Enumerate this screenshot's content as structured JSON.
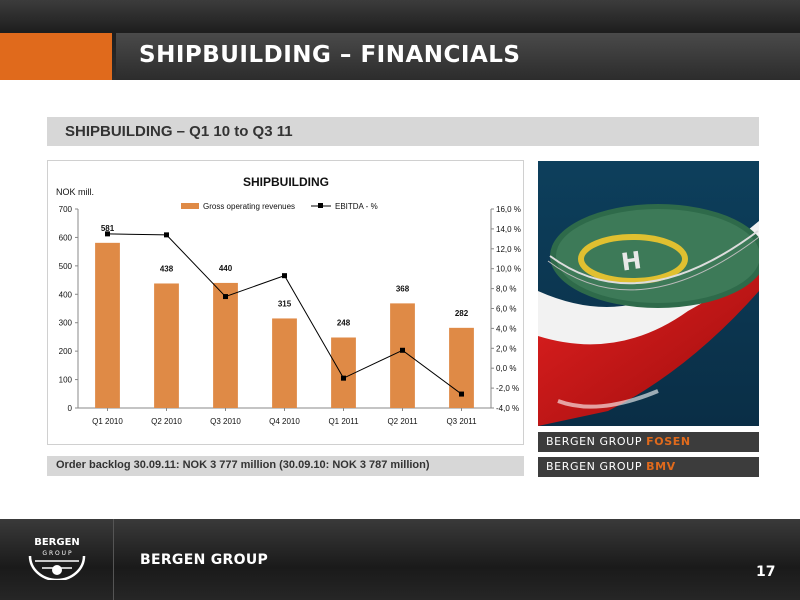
{
  "header": {
    "title": "SHIPBUILDING – FINANCIALS"
  },
  "section": {
    "subtitle": "SHIPBUILDING – Q1 10 to Q3 11"
  },
  "chart_data": {
    "type": "bar",
    "title": "SHIPBUILDING",
    "ylabel": "NOK mill.",
    "categories": [
      "Q1 2010",
      "Q2 2010",
      "Q3 2010",
      "Q4 2010",
      "Q1 2011",
      "Q2 2011",
      "Q3 2011"
    ],
    "ylim": [
      0,
      700
    ],
    "y_ticks": [
      "0",
      "100",
      "200",
      "300",
      "400",
      "500",
      "600",
      "700"
    ],
    "y2lim": [
      -4,
      16
    ],
    "y2_ticks": [
      "-4,0 %",
      "-2,0 %",
      "0,0 %",
      "2,0 %",
      "4,0 %",
      "6,0 %",
      "8,0 %",
      "10,0 %",
      "12,0 %",
      "14,0 %",
      "16,0 %"
    ],
    "legend_position": "top-center",
    "grid": false,
    "series": [
      {
        "name": "Gross operating revenues",
        "type": "bar",
        "axis": "left",
        "color": "#df8a46",
        "values": [
          581,
          438,
          440,
          315,
          248,
          368,
          282
        ],
        "labels": [
          "581",
          "438",
          "440",
          "315",
          "248",
          "368",
          "282"
        ]
      },
      {
        "name": "EBITDA - %",
        "type": "line",
        "axis": "right",
        "color": "#000000",
        "values": [
          13.5,
          13.4,
          7.2,
          9.3,
          -1.0,
          1.8,
          -2.6
        ]
      }
    ]
  },
  "footnote": {
    "backlog": "Order backlog 30.09.11: NOK  3 777 million (30.09.10: NOK 3 787 million)"
  },
  "brands": [
    {
      "prefix": "BERGEN GROUP ",
      "accent": "FOSEN"
    },
    {
      "prefix": "BERGEN GROUP ",
      "accent": "BMV"
    }
  ],
  "footer": {
    "logo_text_top": "BERGEN",
    "logo_text_bottom": "G R O U P",
    "brand": "BERGEN GROUP",
    "page_number": "17"
  },
  "colors": {
    "accent": "#e06a1c",
    "bar": "#df8a46"
  },
  "photo": {
    "icon": "ship-helideck-photo"
  }
}
